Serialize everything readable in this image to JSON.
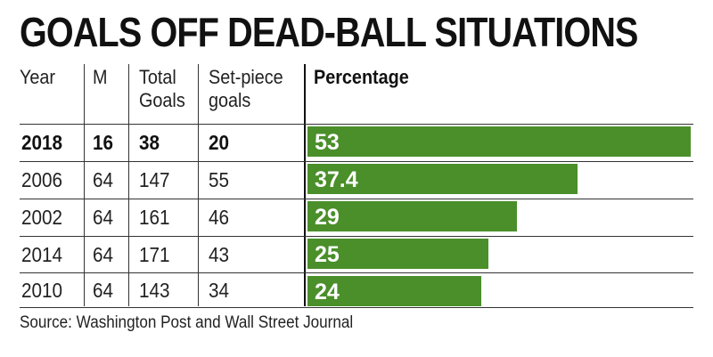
{
  "title": "GOALS OFF DEAD-BALL SITUATIONS",
  "headers": {
    "year": "Year",
    "m": "M",
    "total_1": "Total",
    "total_2": "Goals",
    "setpiece_1": "Set-piece",
    "setpiece_2": "goals",
    "percentage": "Percentage"
  },
  "source": "Source: Washington Post and Wall Street Journal",
  "colors": {
    "bar": "#4a8f2a",
    "bar_label": "#ffffff"
  },
  "chart_data": {
    "type": "table",
    "columns": [
      "Year",
      "M",
      "Total Goals",
      "Set-piece goals",
      "Percentage"
    ],
    "rows": [
      {
        "year": "2018",
        "m": "16",
        "total": "38",
        "setpiece": "20",
        "pct": 53,
        "pct_label": "53",
        "bold": true
      },
      {
        "year": "2006",
        "m": "64",
        "total": "147",
        "setpiece": "55",
        "pct": 37.4,
        "pct_label": "37.4",
        "bold": false
      },
      {
        "year": "2002",
        "m": "64",
        "total": "161",
        "setpiece": "46",
        "pct": 29,
        "pct_label": "29",
        "bold": false
      },
      {
        "year": "2014",
        "m": "64",
        "total": "171",
        "setpiece": "43",
        "pct": 25,
        "pct_label": "25",
        "bold": false
      },
      {
        "year": "2010",
        "m": "64",
        "total": "143",
        "setpiece": "34",
        "pct": 24,
        "pct_label": "24",
        "bold": false
      }
    ]
  }
}
